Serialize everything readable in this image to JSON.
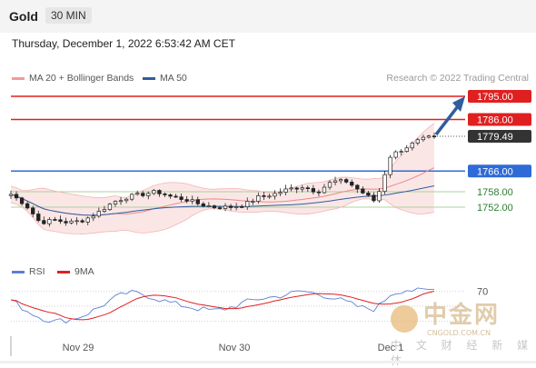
{
  "header": {
    "symbol": "Gold",
    "timeframe": "30 MIN"
  },
  "datetime": "Thursday, December 1, 2022 6:53:42 AM CET",
  "credit": "Research © 2022 Trading Central",
  "legend_main": [
    {
      "label": "MA 20 + Bollinger Bands",
      "color": "#f29a9a"
    },
    {
      "label": "MA 50",
      "color": "#2f5d9e"
    }
  ],
  "legend_rsi": [
    {
      "label": "RSI",
      "color": "#5b7fd6"
    },
    {
      "label": "9MA",
      "color": "#e02020"
    }
  ],
  "watermark": {
    "name": "中金网",
    "url": "CNGOLD.COM.CN",
    "tagline": "中 文 财 经 新 媒 体"
  },
  "chart_data": {
    "type": "candlestick",
    "x_ticks": [
      "Nov 29",
      "Nov 30",
      "Dec 1"
    ],
    "y_range": [
      1742,
      1800
    ],
    "levels": [
      {
        "value": 1795.0,
        "label": "1795.00",
        "role": "resistance"
      },
      {
        "value": 1786.0,
        "label": "1786.00",
        "role": "resistance"
      },
      {
        "value": 1779.49,
        "label": "1779.49",
        "role": "last price"
      },
      {
        "value": 1766.0,
        "label": "1766.00",
        "role": "pivot"
      },
      {
        "value": 1758.0,
        "label": "1758.00",
        "role": "support"
      },
      {
        "value": 1752.0,
        "label": "1752.00",
        "role": "support"
      }
    ],
    "close_anchors": [
      1757,
      1753,
      1746,
      1747,
      1746,
      1747,
      1750,
      1754,
      1756,
      1757,
      1758,
      1756,
      1755,
      1753,
      1752,
      1752,
      1753,
      1756,
      1757,
      1759,
      1760,
      1758,
      1762,
      1762,
      1758,
      1754,
      1772,
      1775,
      1778,
      1779.49
    ],
    "forecast_target": 1795.0,
    "rsi": {
      "level": 70,
      "anchors": [
        58,
        45,
        35,
        30,
        32,
        38,
        48,
        60,
        68,
        66,
        60,
        54,
        50,
        46,
        44,
        48,
        55,
        60,
        62,
        66,
        70,
        66,
        62,
        55,
        48,
        46,
        66,
        72,
        70,
        72
      ]
    }
  }
}
